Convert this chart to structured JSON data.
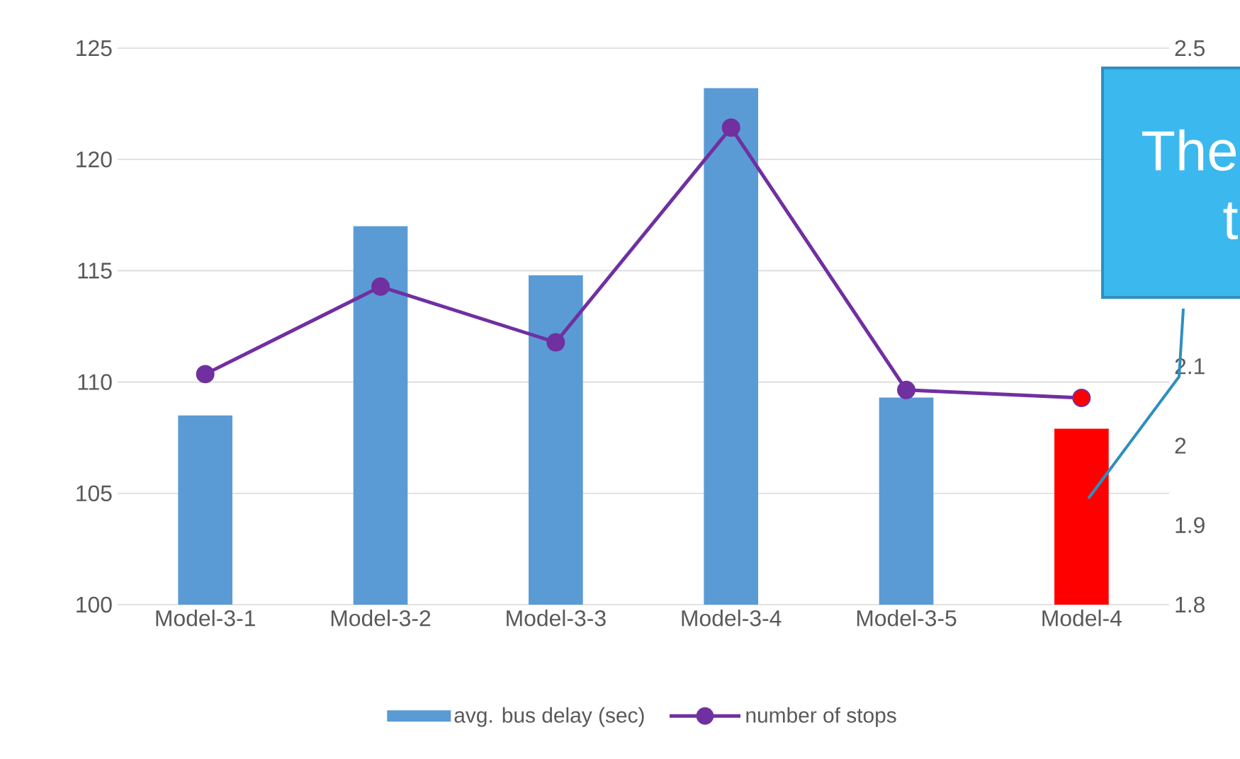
{
  "chart_data": {
    "type": "bar",
    "categories": [
      "Model-3-1",
      "Model-3-2",
      "Model-3-3",
      "Model-3-4",
      "Model-3-5",
      "Model-4"
    ],
    "series": [
      {
        "name": "avg. bus delay (sec)",
        "color": "#5b9bd5",
        "colors": [
          "#5b9bd5",
          "#5b9bd5",
          "#5b9bd5",
          "#5b9bd5",
          "#5b9bd5",
          "#ff0000"
        ],
        "values": [
          108.5,
          117.0,
          114.8,
          123.2,
          109.3,
          107.9
        ]
      },
      {
        "type": "line",
        "name": "number of stops",
        "axis": "y2",
        "color": "#7030a0",
        "colors": [
          "#7030a0",
          "#7030a0",
          "#7030a0",
          "#7030a0",
          "#7030a0",
          "#ff0000"
        ],
        "values": [
          2.09,
          2.2,
          2.13,
          2.4,
          2.07,
          2.06
        ]
      }
    ],
    "ylim": [
      100,
      125
    ],
    "yticks": [
      100,
      105,
      110,
      115,
      120,
      125
    ],
    "y2lim": [
      1.8,
      2.5
    ],
    "y2ticks": [
      1.8,
      1.9,
      2,
      2.1,
      2.5
    ],
    "grid": "y",
    "legend": "bottom",
    "marker": "circle",
    "annotations": [
      "The",
      "t"
    ]
  }
}
